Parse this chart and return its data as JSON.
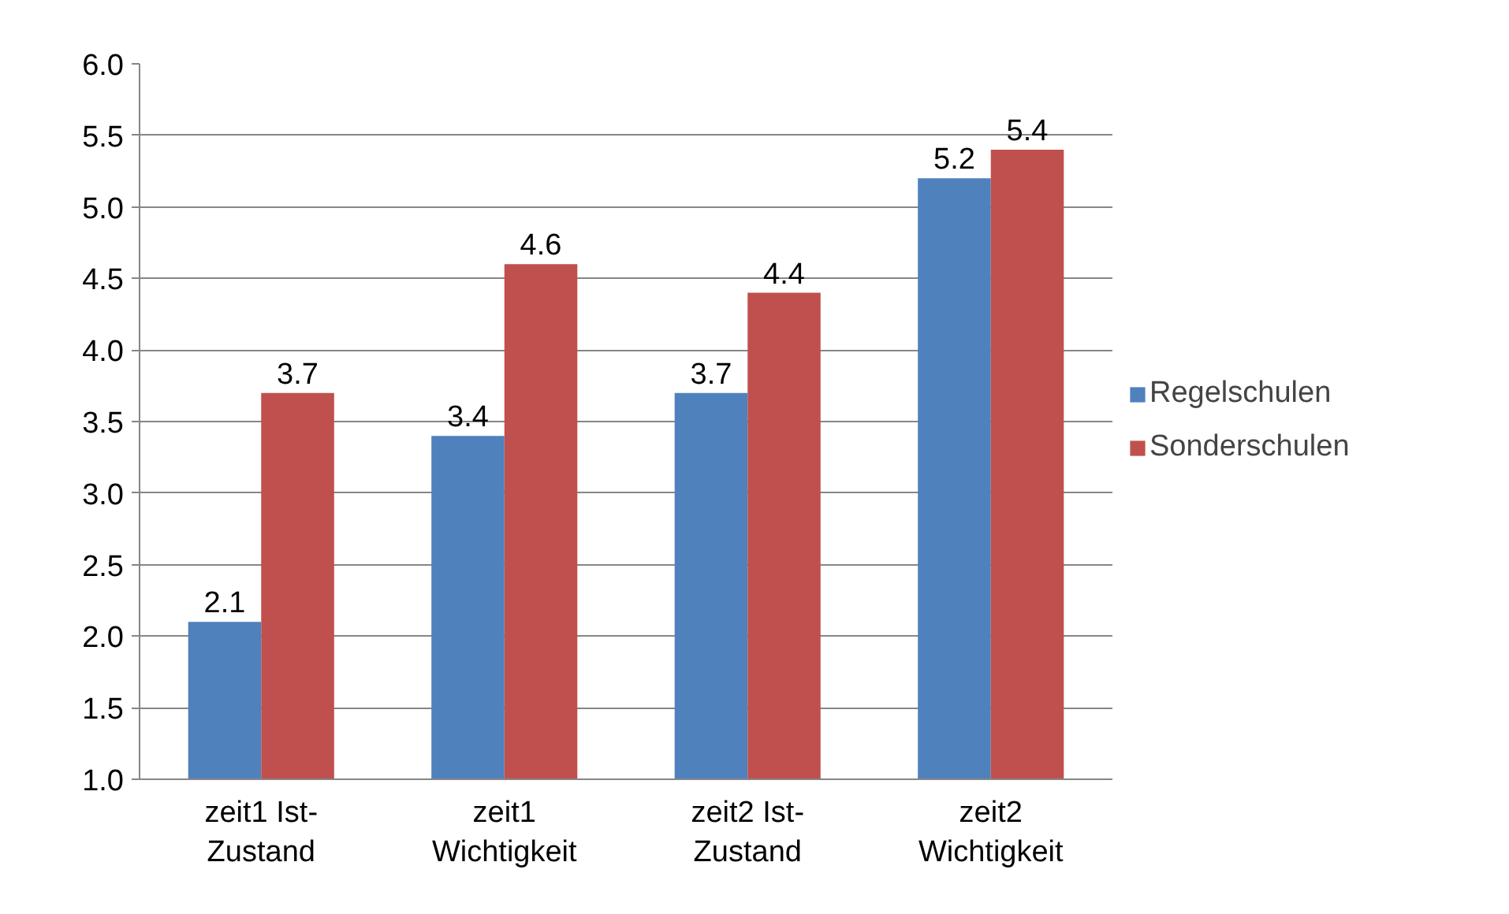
{
  "chart_data": {
    "type": "bar",
    "categories": [
      "zeit1 Ist-Zustand",
      "zeit1 Wichtigkeit",
      "zeit2 Ist-Zustand",
      "zeit2 Wichtigkeit"
    ],
    "series": [
      {
        "name": "Regelschulen",
        "color": "#4f81bd",
        "values": [
          2.1,
          3.4,
          3.7,
          5.2
        ]
      },
      {
        "name": "Sonderschulen",
        "color": "#c0504d",
        "values": [
          3.7,
          4.6,
          4.4,
          5.4
        ]
      }
    ],
    "ylim": [
      1.0,
      6.0
    ],
    "yticks": [
      {
        "value": 1,
        "label": "1.0"
      },
      {
        "value": 1.5,
        "label": "1.5"
      },
      {
        "value": 2,
        "label": "2.0"
      },
      {
        "value": 2.5,
        "label": "2.5"
      },
      {
        "value": 3,
        "label": "3.0"
      },
      {
        "value": 3.5,
        "label": "3.5"
      },
      {
        "value": 4,
        "label": "4.0"
      },
      {
        "value": 4.5,
        "label": "4.5"
      },
      {
        "value": 5,
        "label": "5.0"
      },
      {
        "value": 5.5,
        "label": "5.5"
      },
      {
        "value": 6,
        "label": "6.0"
      }
    ],
    "grid": "y",
    "legend": "right",
    "data_labels": true
  }
}
